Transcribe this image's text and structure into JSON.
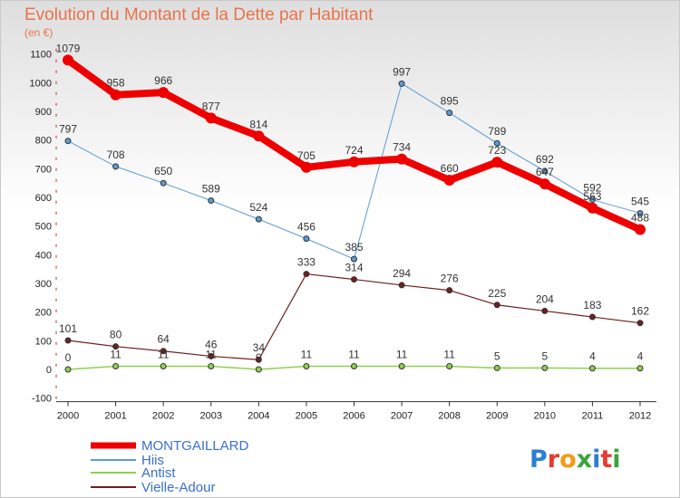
{
  "chart_data": {
    "type": "line",
    "title": "Evolution du Montant de la Dette par Habitant",
    "subtitle": "(en €)",
    "categories": [
      "2000",
      "2001",
      "2002",
      "2003",
      "2004",
      "2005",
      "2006",
      "2007",
      "2008",
      "2009",
      "2010",
      "2011",
      "2012"
    ],
    "y_ticks": [
      -100,
      0,
      100,
      200,
      300,
      400,
      500,
      600,
      700,
      800,
      900,
      1000,
      1100
    ],
    "ylim": [
      -100,
      1100
    ],
    "grid": false,
    "legend_position": "bottom-left",
    "series": [
      {
        "name": "MONTGAILLARD",
        "color": "#ee0000",
        "values": [
          1079,
          958,
          966,
          877,
          814,
          705,
          724,
          734,
          660,
          723,
          647,
          563,
          488
        ]
      },
      {
        "name": "Hiis",
        "color": "#5b9bd5",
        "values": [
          797,
          708,
          650,
          589,
          524,
          456,
          385,
          997,
          895,
          789,
          692,
          592,
          545
        ]
      },
      {
        "name": "Antist",
        "color": "#8fd14f",
        "values": [
          0,
          11,
          11,
          11,
          0,
          11,
          11,
          11,
          11,
          5,
          5,
          4,
          4
        ]
      },
      {
        "name": "Vielle-Adour",
        "color": "#6e2020",
        "values": [
          101,
          80,
          64,
          46,
          34,
          333,
          314,
          294,
          276,
          225,
          204,
          183,
          162
        ]
      }
    ]
  },
  "logo": {
    "text": "Proxiti",
    "letter_colors": [
      "#2a7fd4",
      "#e63c2f",
      "#f39c12",
      "#3aa53a",
      "#2a7fd4",
      "#e63c2f",
      "#3aa53a"
    ]
  }
}
